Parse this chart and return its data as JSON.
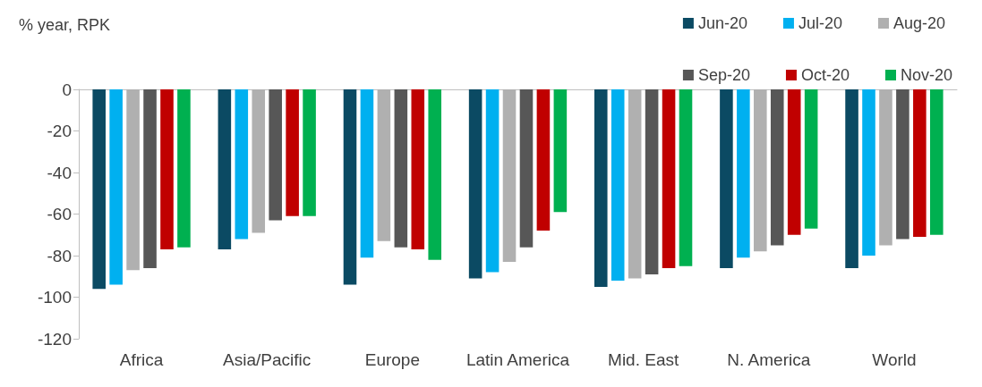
{
  "chart_data": {
    "type": "bar",
    "ylabel": "% year, RPK",
    "categories": [
      "Africa",
      "Asia/Pacific",
      "Europe",
      "Latin America",
      "Mid. East",
      "N. America",
      "World"
    ],
    "series": [
      {
        "name": "Jun-20",
        "color": "#0b4a63",
        "values": [
          -96,
          -77,
          -94,
          -91,
          -95,
          -86,
          -86
        ]
      },
      {
        "name": "Jul-20",
        "color": "#00b0f0",
        "values": [
          -94,
          -72,
          -81,
          -88,
          -92,
          -81,
          -80
        ]
      },
      {
        "name": "Aug-20",
        "color": "#b0b0b0",
        "values": [
          -87,
          -69,
          -73,
          -83,
          -91,
          -78,
          -75
        ]
      },
      {
        "name": "Sep-20",
        "color": "#575757",
        "values": [
          -86,
          -63,
          -76,
          -76,
          -89,
          -75,
          -72
        ]
      },
      {
        "name": "Oct-20",
        "color": "#c00000",
        "values": [
          -77,
          -61,
          -77,
          -68,
          -86,
          -70,
          -71
        ]
      },
      {
        "name": "Nov-20",
        "color": "#00b050",
        "values": [
          -76,
          -61,
          -82,
          -59,
          -85,
          -67,
          -70
        ]
      }
    ],
    "ylim": [
      -120,
      0
    ],
    "yticks": [
      -120,
      -100,
      -80,
      -60,
      -40,
      -20,
      0
    ],
    "grid": false,
    "legend": "top right"
  }
}
